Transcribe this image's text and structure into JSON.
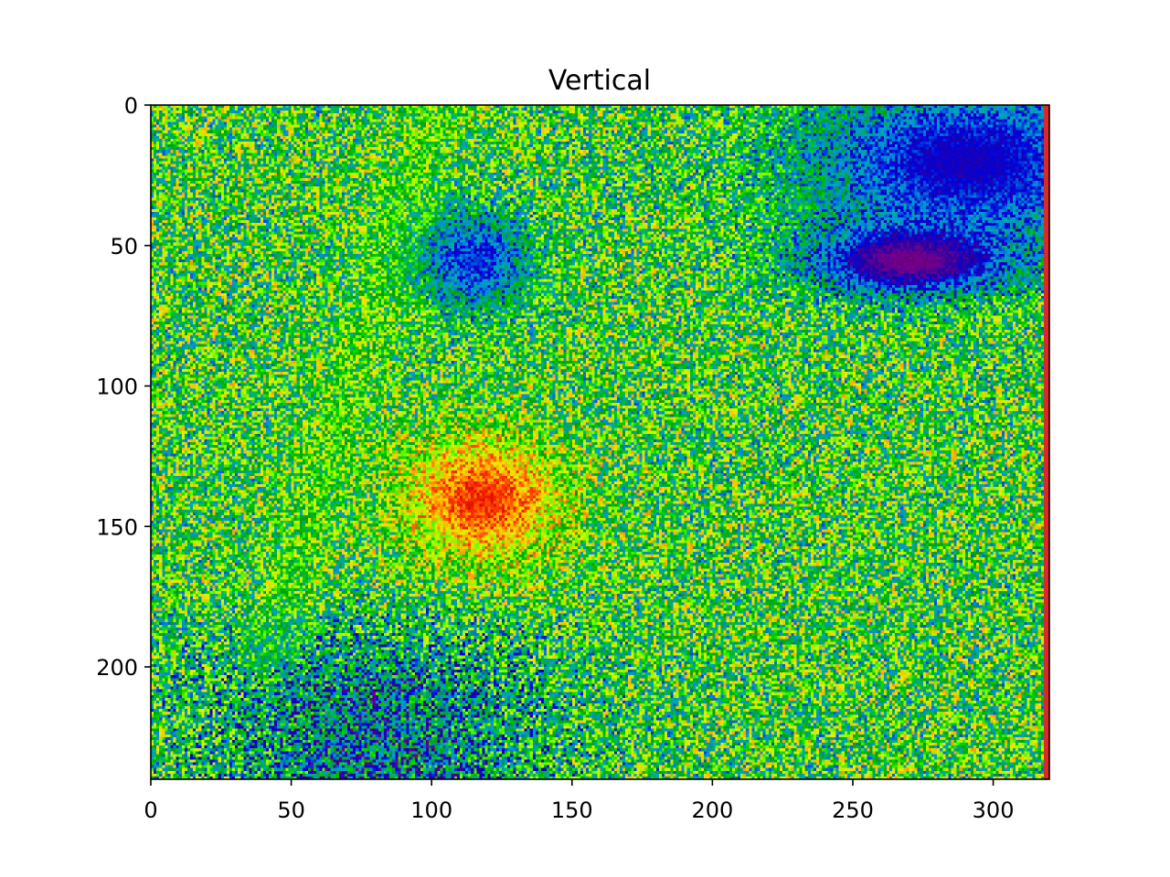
{
  "chart_data": {
    "type": "heatmap",
    "title": "Vertical",
    "xlabel": "",
    "ylabel": "",
    "colormap": "nipy_spectral",
    "image_size": [
      320,
      240
    ],
    "xlim": [
      0,
      320
    ],
    "ylim": [
      240,
      0
    ],
    "x_ticks": [
      0,
      50,
      100,
      150,
      200,
      250,
      300
    ],
    "y_ticks": [
      0,
      50,
      100,
      150,
      200
    ],
    "x_tick_labels": [
      "0",
      "50",
      "100",
      "150",
      "200",
      "250",
      "300"
    ],
    "y_tick_labels": [
      "0",
      "50",
      "100",
      "150",
      "200"
    ],
    "grid": false,
    "legend": "none",
    "colors": {
      "low": "#3a0046",
      "purple": "#7a0098",
      "blue": "#0000dd",
      "cyan": "#00a0c8",
      "green": "#00d000",
      "lime": "#a0ff00",
      "yellow": "#ffff00",
      "orange": "#ff9900",
      "red": "#ee0000"
    }
  }
}
